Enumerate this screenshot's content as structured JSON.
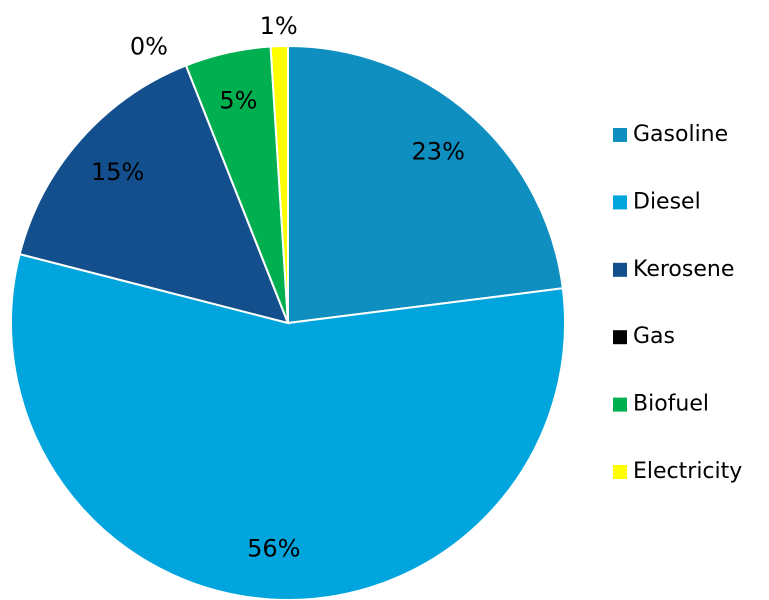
{
  "chart_data": {
    "type": "pie",
    "categories": [
      "Gasoline",
      "Diesel",
      "Kerosene",
      "Gas",
      "Biofuel",
      "Electricity"
    ],
    "values": [
      23,
      56,
      15,
      0,
      5,
      1
    ],
    "value_labels": [
      "23%",
      "56%",
      "15%",
      "0%",
      "5%",
      "1%"
    ],
    "colors": [
      "#0e8fc0",
      "#00a5dd",
      "#124f8c",
      "#000000",
      "#00b050",
      "#ffff00"
    ],
    "legend": "right"
  }
}
